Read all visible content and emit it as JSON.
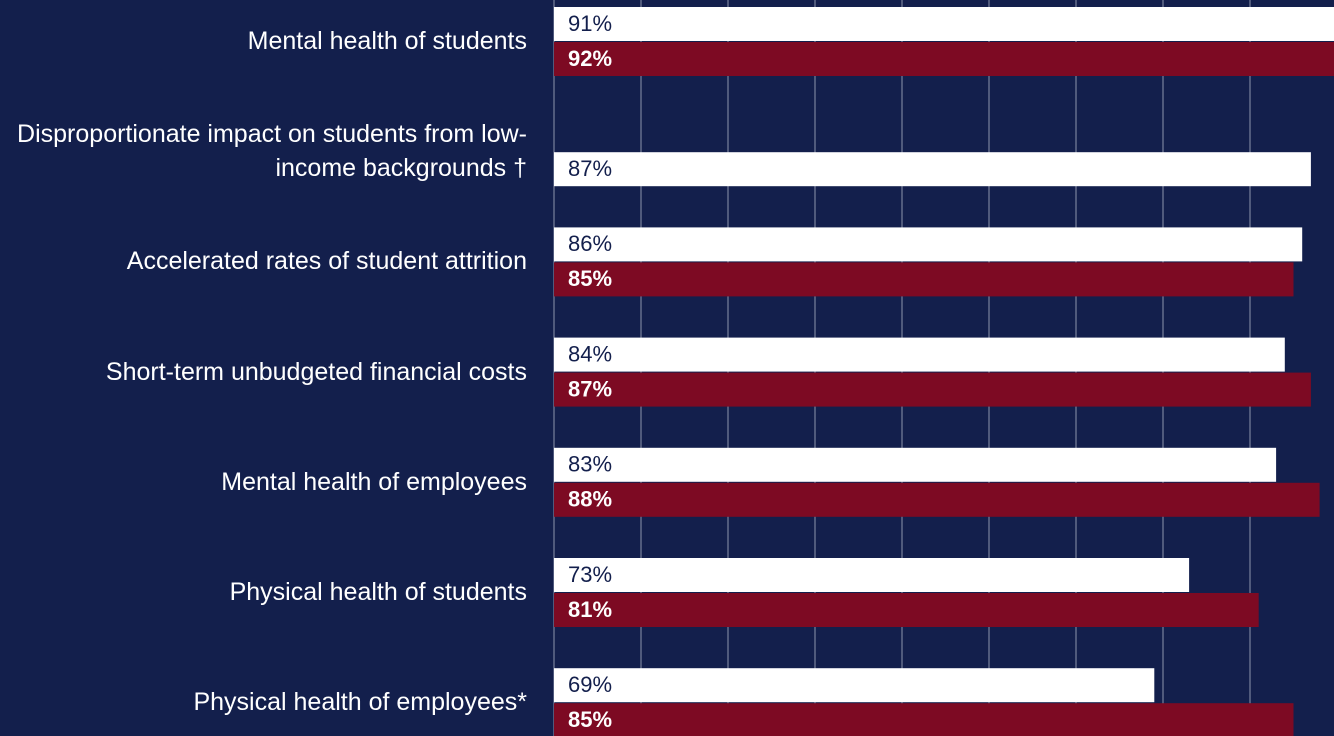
{
  "chart_data": {
    "type": "hbar",
    "categories": [
      "Mental health of students",
      "Disproportionate impact on students from low-income backgrounds †",
      "Accelerated rates of student attrition",
      "Short-term unbudgeted financial costs",
      "Mental health of employees",
      "Physical health of students",
      "Physical health of employees*"
    ],
    "series": [
      {
        "color": "#ffffff",
        "values": [
          91,
          87,
          86,
          84,
          83,
          73,
          69
        ],
        "value_labels": [
          "91%",
          "87%",
          "86%",
          "84%",
          "83%",
          "73%",
          "69%"
        ]
      },
      {
        "color": "#7d0a23",
        "values": [
          92,
          null,
          85,
          87,
          88,
          81,
          85
        ],
        "value_labels": [
          "92%",
          null,
          "85%",
          "87%",
          "88%",
          "81%",
          "85%"
        ]
      }
    ],
    "xlim": [
      0,
      100
    ],
    "xticks": [
      0,
      10,
      20,
      30,
      40,
      50,
      60,
      70,
      80,
      90,
      100
    ],
    "grid": true
  }
}
